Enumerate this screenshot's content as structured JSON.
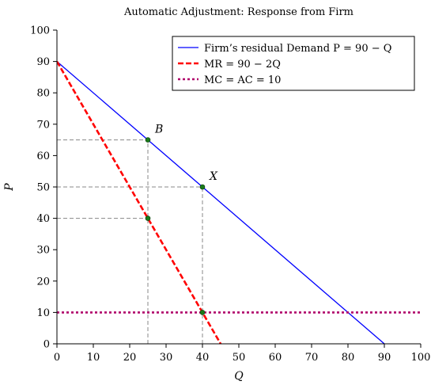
{
  "chart_data": {
    "type": "line",
    "title": "Automatic Adjustment: Response from Firm",
    "xlabel": "Q",
    "ylabel": "P",
    "xlim": [
      0,
      100
    ],
    "ylim": [
      0,
      100
    ],
    "x_ticks": [
      0,
      10,
      20,
      30,
      40,
      50,
      60,
      70,
      80,
      90,
      100
    ],
    "y_ticks": [
      0,
      10,
      20,
      30,
      40,
      50,
      60,
      70,
      80,
      90,
      100
    ],
    "grid": false,
    "legend_position": "top-right",
    "series": [
      {
        "name": "Firm’s residual Demand P = 90 − Q",
        "x": [
          0,
          90
        ],
        "y": [
          90,
          0
        ],
        "color": "#0000ff",
        "style": "solid"
      },
      {
        "name": "MR = 90 − 2Q",
        "x": [
          0,
          45
        ],
        "y": [
          90,
          0
        ],
        "color": "#ff0000",
        "style": "dashed"
      },
      {
        "name": "MC = AC = 10",
        "x": [
          0,
          100
        ],
        "y": [
          10,
          10
        ],
        "color": "#b0006a",
        "style": "dotted"
      }
    ],
    "points": [
      {
        "label": "B",
        "x": 25,
        "y": 65,
        "color": "#1a7a1a"
      },
      {
        "label": "X",
        "x": 40,
        "y": 50,
        "color": "#1a7a1a"
      },
      {
        "label": "",
        "x": 25,
        "y": 40,
        "color": "#1a7a1a"
      },
      {
        "label": "",
        "x": 40,
        "y": 10,
        "color": "#1a7a1a"
      }
    ],
    "guide_lines": [
      {
        "type": "horizontal",
        "y": 65,
        "x_to": 25
      },
      {
        "type": "vertical",
        "x": 25,
        "y_to": 65
      },
      {
        "type": "horizontal",
        "y": 50,
        "x_to": 40
      },
      {
        "type": "vertical",
        "x": 40,
        "y_to": 50
      },
      {
        "type": "horizontal",
        "y": 40,
        "x_to": 25
      }
    ],
    "guide_color": "#888888"
  }
}
